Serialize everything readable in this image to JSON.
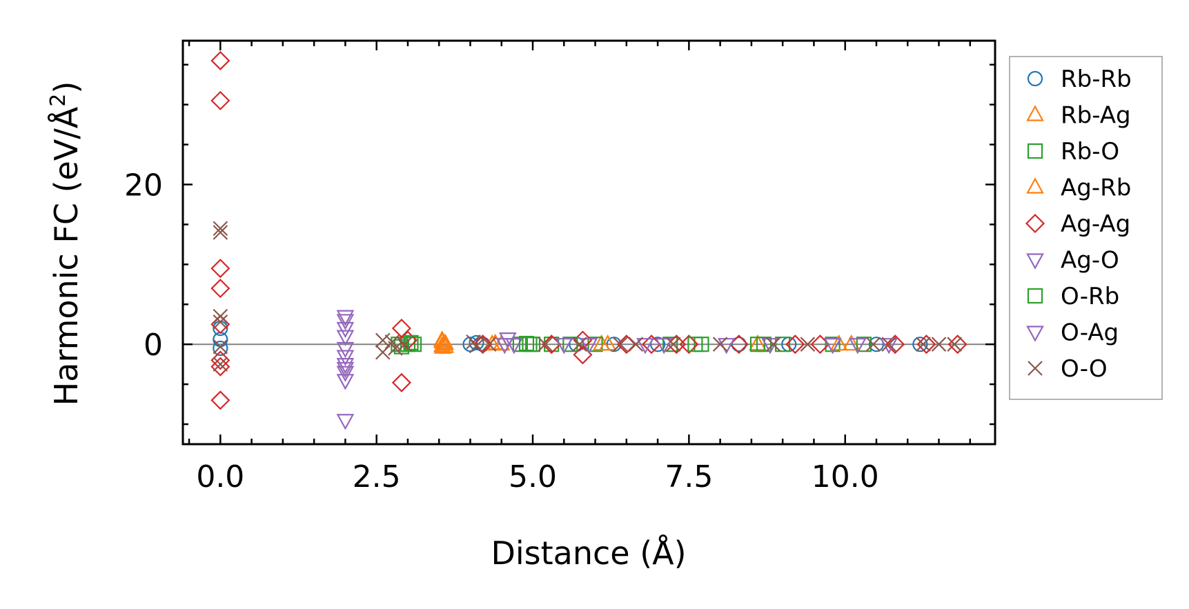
{
  "chart_data": {
    "type": "scatter",
    "title": "",
    "xlabel": "Distance (Å)",
    "ylabel": "Harmonic FC (eV/Å²)",
    "ylabel_main": "Harmonic FC (eV/Å",
    "ylabel_sup": "2",
    "ylabel_close": ")",
    "xlim": [
      -0.6,
      12.4
    ],
    "ylim": [
      -12.5,
      38
    ],
    "x_ticks": [
      {
        "value": 0.0,
        "label": "0.0"
      },
      {
        "value": 2.5,
        "label": "2.5"
      },
      {
        "value": 5.0,
        "label": "5.0"
      },
      {
        "value": 7.5,
        "label": "7.5"
      },
      {
        "value": 10.0,
        "label": "10.0"
      }
    ],
    "x_minor_step": 0.5,
    "y_ticks": [
      {
        "value": 0,
        "label": "0"
      },
      {
        "value": 20,
        "label": "20"
      }
    ],
    "y_minor_step": 5,
    "zero_line": true,
    "grid": false,
    "legend_position": "outside-right",
    "series": [
      {
        "name": "Rb-Rb",
        "marker": "circle",
        "color": "#1f77b4",
        "points": [
          [
            0,
            0.6
          ],
          [
            0,
            2.0
          ],
          [
            0,
            -0.5
          ],
          [
            4.0,
            0
          ],
          [
            4.1,
            0.2
          ],
          [
            4.2,
            0
          ],
          [
            5.7,
            0
          ],
          [
            6.3,
            0
          ],
          [
            7.0,
            0
          ],
          [
            8.3,
            0
          ],
          [
            9.1,
            0
          ],
          [
            10.5,
            0
          ],
          [
            11.2,
            0
          ]
        ]
      },
      {
        "name": "Rb-Ag",
        "marker": "triangle-up",
        "color": "#ff7f0e",
        "points": [
          [
            3.55,
            0.3
          ],
          [
            3.55,
            -0.2
          ],
          [
            3.6,
            0.1
          ],
          [
            3.6,
            -0.3
          ],
          [
            3.58,
            0
          ],
          [
            4.35,
            0
          ],
          [
            4.4,
            0.1
          ],
          [
            6.1,
            0
          ],
          [
            8.6,
            0
          ],
          [
            10.1,
            0
          ]
        ]
      },
      {
        "name": "Rb-O",
        "marker": "square",
        "color": "#2ca02c",
        "points": [
          [
            2.85,
            0
          ],
          [
            3.0,
            0
          ],
          [
            3.1,
            0
          ],
          [
            4.8,
            0
          ],
          [
            4.95,
            0
          ],
          [
            5.0,
            0
          ],
          [
            5.3,
            0
          ],
          [
            6.0,
            0
          ],
          [
            7.2,
            0
          ],
          [
            7.7,
            0
          ],
          [
            8.6,
            0
          ],
          [
            9.0,
            0
          ],
          [
            9.8,
            0
          ],
          [
            10.3,
            0
          ]
        ]
      },
      {
        "name": "Ag-Rb",
        "marker": "triangle-up",
        "color": "#ff7f0e",
        "points": [
          [
            3.55,
            0.5
          ],
          [
            3.56,
            -0.4
          ],
          [
            4.5,
            0
          ],
          [
            6.2,
            0
          ],
          [
            9.9,
            0
          ]
        ]
      },
      {
        "name": "Ag-Ag",
        "marker": "diamond",
        "color": "#d62728",
        "points": [
          [
            0,
            35.5
          ],
          [
            0,
            30.5
          ],
          [
            0,
            9.5
          ],
          [
            0,
            7.0
          ],
          [
            0,
            -2.0
          ],
          [
            0,
            -2.8
          ],
          [
            0,
            -7.0
          ],
          [
            0,
            2.5
          ],
          [
            2.9,
            2.0
          ],
          [
            2.9,
            -4.8
          ],
          [
            3.0,
            0.5
          ],
          [
            4.2,
            0
          ],
          [
            5.3,
            0
          ],
          [
            5.8,
            0.5
          ],
          [
            5.8,
            -1.3
          ],
          [
            6.5,
            0
          ],
          [
            6.9,
            0
          ],
          [
            7.3,
            0
          ],
          [
            7.5,
            0
          ],
          [
            8.3,
            0
          ],
          [
            9.2,
            0
          ],
          [
            9.6,
            0
          ],
          [
            10.8,
            0
          ],
          [
            11.3,
            0
          ],
          [
            11.8,
            0
          ]
        ]
      },
      {
        "name": "Ag-O",
        "marker": "triangle-down",
        "color": "#9467bd",
        "points": [
          [
            2.0,
            3.5
          ],
          [
            2.0,
            3.0
          ],
          [
            2.0,
            2.0
          ],
          [
            2.0,
            1.0
          ],
          [
            2.0,
            -1.5
          ],
          [
            2.0,
            -2.5
          ],
          [
            2.0,
            -3.5
          ],
          [
            2.0,
            -4.5
          ],
          [
            2.0,
            -9.5
          ],
          [
            4.6,
            0.7
          ],
          [
            4.7,
            0
          ],
          [
            5.9,
            0
          ],
          [
            7.1,
            0
          ],
          [
            8.1,
            0
          ],
          [
            9.8,
            0
          ],
          [
            10.7,
            0
          ]
        ]
      },
      {
        "name": "O-Rb",
        "marker": "square",
        "color": "#2ca02c",
        "points": [
          [
            2.9,
            -0.3
          ],
          [
            3.05,
            0.2
          ],
          [
            4.9,
            0.1
          ],
          [
            5.6,
            0
          ],
          [
            7.6,
            0
          ],
          [
            8.7,
            0
          ]
        ]
      },
      {
        "name": "O-Ag",
        "marker": "triangle-down",
        "color": "#9467bd",
        "points": [
          [
            2.0,
            -0.5
          ],
          [
            2.0,
            -3.0
          ],
          [
            4.55,
            0
          ],
          [
            5.5,
            0
          ],
          [
            6.8,
            0
          ],
          [
            8.8,
            0
          ],
          [
            10.2,
            0
          ]
        ]
      },
      {
        "name": "O-O",
        "marker": "x",
        "color": "#8c564b",
        "points": [
          [
            0,
            14.5
          ],
          [
            0,
            14.0
          ],
          [
            0,
            3.5
          ],
          [
            0,
            2.8
          ],
          [
            0,
            -2.5
          ],
          [
            0,
            -0.3
          ],
          [
            2.6,
            0.5
          ],
          [
            2.6,
            -1.0
          ],
          [
            2.75,
            0.3
          ],
          [
            2.8,
            -0.5
          ],
          [
            2.95,
            0
          ],
          [
            4.05,
            0.3
          ],
          [
            4.1,
            -0.2
          ],
          [
            4.3,
            0
          ],
          [
            5.2,
            0
          ],
          [
            5.75,
            0
          ],
          [
            6.4,
            0
          ],
          [
            6.65,
            0
          ],
          [
            7.25,
            0
          ],
          [
            8.0,
            0
          ],
          [
            8.85,
            0
          ],
          [
            9.4,
            0
          ],
          [
            10.45,
            0
          ],
          [
            10.7,
            0
          ],
          [
            11.25,
            0
          ],
          [
            11.5,
            0
          ],
          [
            11.75,
            0
          ]
        ]
      }
    ]
  }
}
